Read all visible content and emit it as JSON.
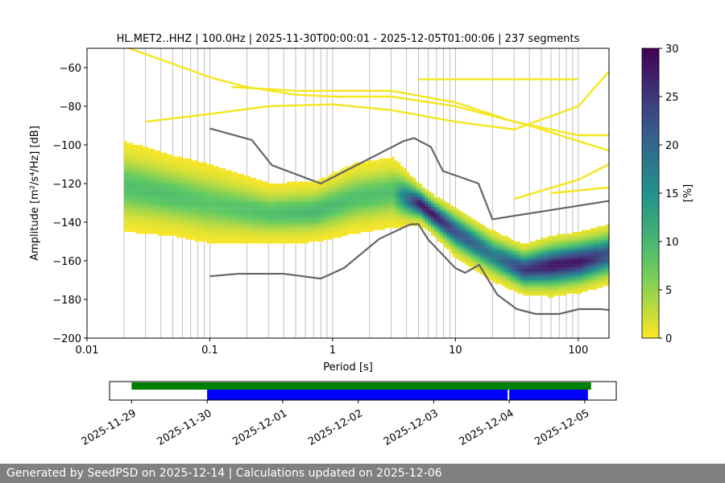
{
  "chart_data": {
    "type": "heatmap",
    "title": "HL.MET2..HHZ | 100.0Hz | 2025-11-30T00:00:01 - 2025-12-05T01:00:06 | 237 segments",
    "xlabel": "Period [s]",
    "ylabel": "Amplitude [m²/s⁴/Hz] [dB]",
    "xscale": "log",
    "xlim": [
      0.01,
      178
    ],
    "ylim": [
      -200,
      -50
    ],
    "xticks": [
      {
        "v": 0.01,
        "label": "0.01"
      },
      {
        "v": 0.1,
        "label": "0.1"
      },
      {
        "v": 1,
        "label": "1"
      },
      {
        "v": 10,
        "label": "10"
      },
      {
        "v": 100,
        "label": "100"
      }
    ],
    "yticks": [
      {
        "v": -60,
        "label": "−60"
      },
      {
        "v": -80,
        "label": "−80"
      },
      {
        "v": -100,
        "label": "−100"
      },
      {
        "v": -120,
        "label": "−120"
      },
      {
        "v": -140,
        "label": "−140"
      },
      {
        "v": -160,
        "label": "−160"
      },
      {
        "v": -180,
        "label": "−180"
      },
      {
        "v": -200,
        "label": "−200"
      }
    ],
    "grid": "vertical minor log grid from 0.02 s",
    "colorbar": {
      "label": "[%]",
      "range": [
        0,
        30
      ],
      "colormap": "viridis_r",
      "ticks": [
        {
          "v": 0,
          "label": "0"
        },
        {
          "v": 5,
          "label": "5"
        },
        {
          "v": 10,
          "label": "10"
        },
        {
          "v": 15,
          "label": "15"
        },
        {
          "v": 20,
          "label": "20"
        },
        {
          "v": 25,
          "label": "25"
        },
        {
          "v": 30,
          "label": "30"
        }
      ]
    },
    "histogram_mode": [
      {
        "period": 0.02,
        "db": -122,
        "peak": 9,
        "spread": 9
      },
      {
        "period": 0.05,
        "db": -127,
        "peak": 9,
        "spread": 8
      },
      {
        "period": 0.1,
        "db": -131,
        "peak": 8,
        "spread": 8
      },
      {
        "period": 0.3,
        "db": -136,
        "peak": 9,
        "spread": 6
      },
      {
        "period": 0.7,
        "db": -135,
        "peak": 10,
        "spread": 6
      },
      {
        "period": 1.5,
        "db": -128,
        "peak": 9,
        "spread": 7
      },
      {
        "period": 3,
        "db": -125,
        "peak": 9,
        "spread": 7
      },
      {
        "period": 5,
        "db": -131,
        "peak": 28,
        "spread": 4
      },
      {
        "period": 6.5,
        "db": -137,
        "peak": 28,
        "spread": 4
      },
      {
        "period": 10,
        "db": -146,
        "peak": 22,
        "spread": 5
      },
      {
        "period": 20,
        "db": -158,
        "peak": 18,
        "spread": 5
      },
      {
        "period": 35,
        "db": -165,
        "peak": 25,
        "spread": 5
      },
      {
        "period": 60,
        "db": -163,
        "peak": 28,
        "spread": 6
      },
      {
        "period": 100,
        "db": -161,
        "peak": 28,
        "spread": 6
      },
      {
        "period": 178,
        "db": -157,
        "peak": 22,
        "spread": 6
      }
    ],
    "sparse_lines": [
      [
        [
          0.022,
          -50
        ],
        [
          0.05,
          -58
        ],
        [
          0.1,
          -65
        ],
        [
          0.2,
          -70
        ],
        [
          0.5,
          -74
        ],
        [
          1,
          -75
        ],
        [
          3,
          -75
        ],
        [
          10,
          -80
        ],
        [
          40,
          -90
        ],
        [
          100,
          -98
        ],
        [
          178,
          -103
        ]
      ],
      [
        [
          0.03,
          -88
        ],
        [
          0.1,
          -84
        ],
        [
          0.3,
          -80
        ],
        [
          1,
          -79
        ],
        [
          3,
          -82
        ],
        [
          10,
          -88
        ],
        [
          30,
          -92
        ],
        [
          100,
          -80
        ],
        [
          178,
          -62
        ]
      ],
      [
        [
          0.15,
          -70
        ],
        [
          0.5,
          -72
        ],
        [
          1,
          -72
        ],
        [
          3,
          -72
        ],
        [
          10,
          -78
        ],
        [
          30,
          -88
        ],
        [
          100,
          -95
        ],
        [
          178,
          -95
        ]
      ],
      [
        [
          5,
          -66
        ],
        [
          100,
          -66
        ]
      ],
      [
        [
          30,
          -128
        ],
        [
          100,
          -118
        ],
        [
          178,
          -110
        ]
      ],
      [
        [
          60,
          -125
        ],
        [
          178,
          -122
        ]
      ]
    ],
    "noise_models": [
      {
        "name": "NHNM",
        "points": [
          [
            0.1,
            -91.5
          ],
          [
            0.22,
            -97.5
          ],
          [
            0.32,
            -110.5
          ],
          [
            0.8,
            -120
          ],
          [
            3.8,
            -98
          ],
          [
            4.6,
            -96.5
          ],
          [
            6.3,
            -101
          ],
          [
            7.9,
            -113.5
          ],
          [
            15.4,
            -120
          ],
          [
            20,
            -138.5
          ],
          [
            178,
            -129
          ]
        ]
      },
      {
        "name": "NLNM",
        "points": [
          [
            0.1,
            -168
          ],
          [
            0.17,
            -166.7
          ],
          [
            0.4,
            -166.7
          ],
          [
            0.8,
            -169.2
          ],
          [
            1.24,
            -163.7
          ],
          [
            2.4,
            -148.6
          ],
          [
            4.3,
            -141.1
          ],
          [
            5,
            -141
          ],
          [
            6,
            -149
          ],
          [
            10,
            -163.8
          ],
          [
            12,
            -166.2
          ],
          [
            15.6,
            -162.1
          ],
          [
            21.9,
            -177.5
          ],
          [
            31.6,
            -185
          ],
          [
            45,
            -187.5
          ],
          [
            70,
            -187.5
          ],
          [
            101,
            -185
          ],
          [
            154,
            -185
          ],
          [
            178,
            -185.5
          ]
        ]
      }
    ],
    "coverage": {
      "range": [
        "2025-11-28T17:00",
        "2025-12-05T10:00"
      ],
      "ticks": [
        "2025-11-29",
        "2025-11-30",
        "2025-12-01",
        "2025-12-02",
        "2025-12-03",
        "2025-12-04",
        "2025-12-05"
      ],
      "data_available": [
        {
          "start": "2025-11-29T00:00",
          "end": "2025-12-05T02:00",
          "color": "#008000"
        }
      ],
      "psd_processed": [
        {
          "start": "2025-11-30T00:00",
          "end": "2025-12-03T23:30",
          "color": "#0000ff"
        },
        {
          "start": "2025-12-04T00:00",
          "end": "2025-12-05T01:00",
          "color": "#0000ff"
        }
      ]
    }
  },
  "footer": {
    "text": "Generated by SeedPSD on 2025-12-14 | Calculations updated on 2025-12-06"
  }
}
